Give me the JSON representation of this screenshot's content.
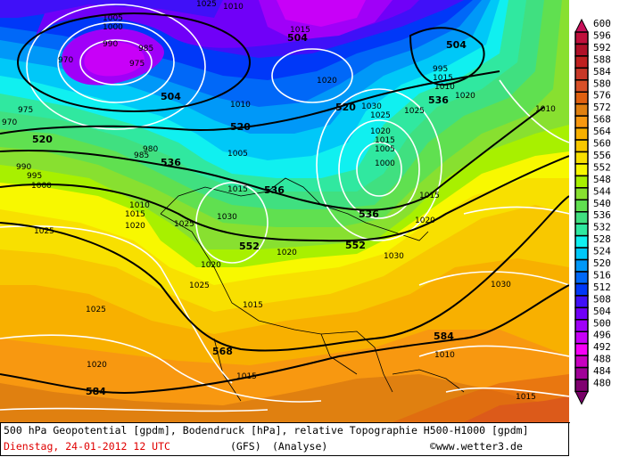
{
  "caption": {
    "title": "500 hPa Geopotential [gpdm], Bodendruck [hPa], relative Topographie H500-H1000 [gpdm]",
    "date": "Dienstag, 24-01-2012  12 UTC",
    "model": "(GFS)",
    "run_type": "(Analyse)",
    "copyright_symbol": "©",
    "site": "www.wetter3.de"
  },
  "legend": {
    "unit": "gpdm",
    "levels": [
      "600",
      "596",
      "592",
      "588",
      "584",
      "580",
      "576",
      "572",
      "568",
      "564",
      "560",
      "556",
      "552",
      "548",
      "544",
      "540",
      "536",
      "532",
      "528",
      "524",
      "520",
      "516",
      "512",
      "508",
      "504",
      "500",
      "496",
      "492",
      "488",
      "484",
      "480"
    ],
    "colors": [
      "#c0103c",
      "#b01028",
      "#c02020",
      "#c83828",
      "#d85028",
      "#e06010",
      "#e08010",
      "#f89810",
      "#f8b000",
      "#f8c800",
      "#f8e000",
      "#f8f800",
      "#a8f000",
      "#88e030",
      "#60e050",
      "#40e080",
      "#30e8a0",
      "#10f0f0",
      "#00c8f8",
      "#0098f8",
      "#0068f8",
      "#0038f8",
      "#4010f8",
      "#7000f8",
      "#a000f8",
      "#c800f8",
      "#f800f8",
      "#c800c0",
      "#a00098",
      "#800070"
    ],
    "top_arrow_color": "#c8105a",
    "bottom_arrow_color": "#780068"
  },
  "map": {
    "geopotential_labels": [
      "504",
      "504",
      "504",
      "520",
      "520",
      "520",
      "536",
      "536",
      "536",
      "536",
      "552",
      "552",
      "568",
      "584",
      "584"
    ],
    "pressure_labels": [
      "1005",
      "1000",
      "990",
      "985",
      "975",
      "970",
      "975",
      "970",
      "980",
      "985",
      "990",
      "995",
      "1000",
      "1010",
      "1015",
      "1020",
      "1025",
      "1025",
      "1020",
      "1025",
      "1020",
      "1015",
      "1010",
      "1005",
      "1015",
      "1030",
      "1025",
      "1015",
      "1010",
      "1020",
      "1030",
      "1025",
      "1020",
      "1015",
      "1005",
      "1000",
      "995",
      "1010",
      "1015",
      "1020",
      "1025",
      "1030",
      "1020",
      "1015",
      "1010",
      "1030",
      "1025",
      "1020",
      "1015",
      "1010",
      "1015"
    ]
  }
}
